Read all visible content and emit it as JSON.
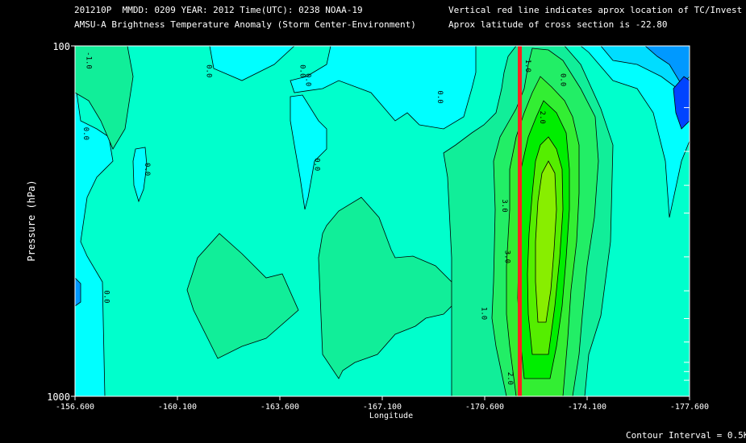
{
  "header": {
    "line1_left": "201210P  MMDD: 0209 YEAR: 2012 Time(UTC): 0238 NOAA-19",
    "line2_left": "AMSU-A Brightness Temperature Anomaly (Storm Center-Environment)",
    "line1_right": "Vertical red line indicates aprox location of TC/Invest",
    "line2_right": "Aprox latitude of cross section is -22.80"
  },
  "footer": {
    "contour_interval": "Contour Interval = 0.5K"
  },
  "colors": {
    "background": "#000000",
    "storm_line": "#ff2020",
    "contour": "#000000",
    "fill_levels": [
      "#0044ff",
      "#0099ff",
      "#00ddff",
      "#00ffff",
      "#00ffcc",
      "#11ee99",
      "#22ee66",
      "#33ee33",
      "#00ee00",
      "#55ee00",
      "#88ee00"
    ]
  },
  "chart_data": {
    "type": "contour",
    "title": "AMSU-A Brightness Temperature Anomaly (Storm Center-Environment)",
    "xlabel": "Longitude",
    "ylabel": "Pressure (hPa)",
    "xlim": [
      -156.6,
      -177.6
    ],
    "ylim": [
      1000,
      100
    ],
    "y_scale": "log",
    "x_ticks": [
      -156.6,
      -160.1,
      -163.6,
      -167.1,
      -170.6,
      -174.1,
      -177.6
    ],
    "x_tick_labels": [
      "-156.600",
      "-160.100",
      "-163.600",
      "-167.100",
      "-170.600",
      "-174.100",
      "-177.600"
    ],
    "y_ticks": [
      100,
      1000
    ],
    "y_tick_labels": [
      "100",
      "1000"
    ],
    "y_minor_ticks": [
      150,
      200,
      250,
      300,
      400,
      500,
      600,
      700,
      800,
      850,
      900
    ],
    "storm_longitude": -171.8,
    "cross_section_latitude": -22.8,
    "contour_interval": 0.5,
    "contour_labels": [
      {
        "text": "-1.0",
        "lon": -157.0,
        "p": 110
      },
      {
        "text": "0.0",
        "lon": -161.1,
        "p": 118
      },
      {
        "text": "0.0",
        "lon": -164.3,
        "p": 118
      },
      {
        "text": "0.0",
        "lon": -164.5,
        "p": 125
      },
      {
        "text": "0.0",
        "lon": -156.9,
        "p": 178
      },
      {
        "text": "0.0",
        "lon": -159.0,
        "p": 225
      },
      {
        "text": "0.0",
        "lon": -164.8,
        "p": 218
      },
      {
        "text": "0.0",
        "lon": -169.0,
        "p": 140
      },
      {
        "text": "0.0",
        "lon": -157.6,
        "p": 520
      },
      {
        "text": "1.0",
        "lon": -172.0,
        "p": 114
      },
      {
        "text": "0.0",
        "lon": -173.2,
        "p": 125
      },
      {
        "text": "2.0",
        "lon": -172.5,
        "p": 160
      },
      {
        "text": "3.0",
        "lon": -171.2,
        "p": 286
      },
      {
        "text": "3.0",
        "lon": -171.3,
        "p": 400
      },
      {
        "text": "1.0",
        "lon": -170.5,
        "p": 580
      },
      {
        "text": "2.0",
        "lon": -171.4,
        "p": 890
      }
    ],
    "field_samples": [
      {
        "lon": -157.0,
        "p": 120,
        "value": -1.0
      },
      {
        "lon": -160.5,
        "p": 500,
        "value": 0.5
      },
      {
        "lon": -166.0,
        "p": 500,
        "value": 0.5
      },
      {
        "lon": -170.9,
        "p": 600,
        "value": 1.5
      },
      {
        "lon": -171.5,
        "p": 220,
        "value": 3.5
      },
      {
        "lon": -171.6,
        "p": 300,
        "value": 3.0
      },
      {
        "lon": -173.0,
        "p": 700,
        "value": 1.5
      },
      {
        "lon": -176.3,
        "p": 160,
        "value": -1.0
      },
      {
        "lon": -177.4,
        "p": 135,
        "value": -1.5
      }
    ]
  }
}
